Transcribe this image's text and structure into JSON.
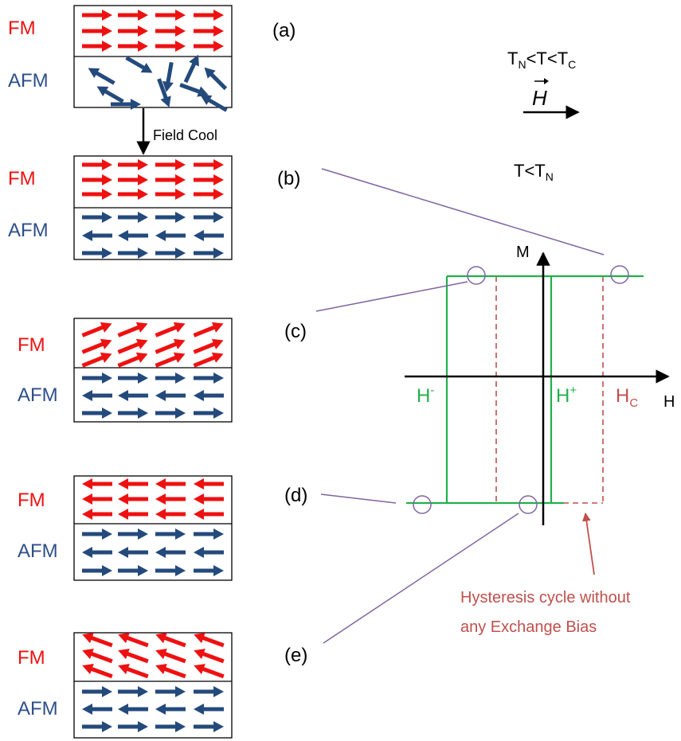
{
  "labels": {
    "fm": "FM",
    "afm": "AFM",
    "field_cool": "Field Cool",
    "step_a": "(a)",
    "step_b": "(b)",
    "step_c": "(c)",
    "step_d": "(d)",
    "step_e": "(e)",
    "temp_cond_1": {
      "t_n": "T",
      "t_n_sub": "N",
      "lt1": "<T<",
      "t_c": "T",
      "t_c_sub": "C"
    },
    "temp_cond_2": {
      "t": "T<T",
      "t_sub": "N"
    },
    "field_vector": "H",
    "axis_m": "M",
    "axis_h": "H",
    "h_minus": {
      "base": "H",
      "sup": "-"
    },
    "h_plus": {
      "base": "H",
      "sup": "+"
    },
    "h_c": {
      "base": "H",
      "sub": "C"
    },
    "caption_line1": "Hysteresis cycle without",
    "caption_line2": "any Exchange Bias"
  },
  "colors": {
    "fm": "#ee1111",
    "afm_label": "#2d4f8a",
    "afm_arrow": "#244a7c",
    "loop_green": "#22b04c",
    "loop_dashed": "#c0504d",
    "callout": "#8064a2",
    "caption": "#c0504d",
    "axis": "#000000"
  }
}
